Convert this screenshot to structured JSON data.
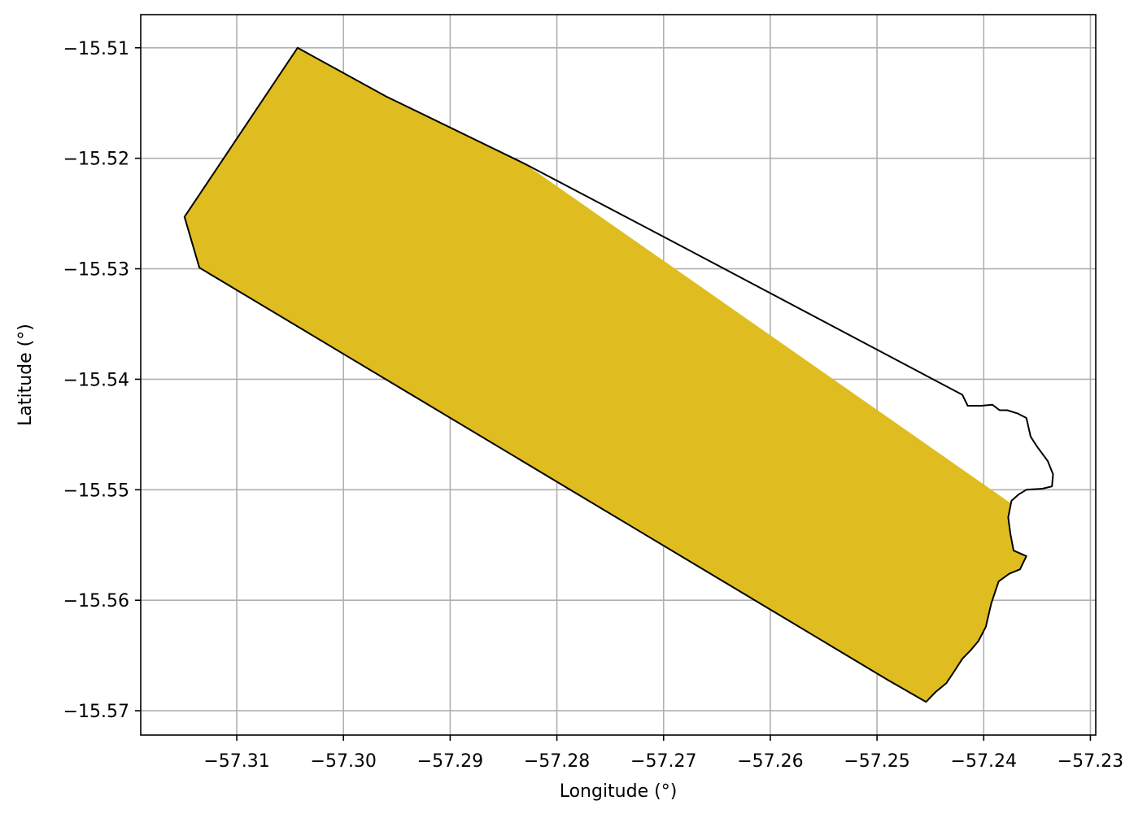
{
  "chart_data": {
    "type": "map",
    "xlabel": "Longitude (°)",
    "ylabel": "Latitude (°)",
    "xlim": [
      -57.319,
      -57.2295
    ],
    "ylim": [
      -15.5722,
      -15.507
    ],
    "grid": true,
    "x_ticks": [
      {
        "value": -57.31,
        "label": "−57.31"
      },
      {
        "value": -57.3,
        "label": "−57.30"
      },
      {
        "value": -57.29,
        "label": "−57.29"
      },
      {
        "value": -57.28,
        "label": "−57.28"
      },
      {
        "value": -57.27,
        "label": "−57.27"
      },
      {
        "value": -57.26,
        "label": "−57.26"
      },
      {
        "value": -57.25,
        "label": "−57.25"
      },
      {
        "value": -57.24,
        "label": "−57.24"
      },
      {
        "value": -57.23,
        "label": "−57.23"
      }
    ],
    "y_ticks": [
      {
        "value": -15.51,
        "label": "−15.51"
      },
      {
        "value": -15.52,
        "label": "−15.52"
      },
      {
        "value": -15.53,
        "label": "−15.53"
      },
      {
        "value": -15.54,
        "label": "−15.54"
      },
      {
        "value": -15.55,
        "label": "−15.55"
      },
      {
        "value": -15.56,
        "label": "−15.56"
      },
      {
        "value": -15.57,
        "label": "−15.57"
      }
    ],
    "colors": {
      "fill": "#dfbd20",
      "outline": "#000000",
      "grid": "#b0b0b0"
    },
    "outline_polygon": [
      [
        -57.3043,
        -15.51
      ],
      [
        -57.296,
        -15.5144
      ],
      [
        -57.283,
        -15.5205
      ],
      [
        -57.27,
        -15.5271
      ],
      [
        -57.242,
        -15.5414
      ],
      [
        -57.2415,
        -15.5424
      ],
      [
        -57.2402,
        -15.5424
      ],
      [
        -57.2392,
        -15.5423
      ],
      [
        -57.2385,
        -15.5428
      ],
      [
        -57.2378,
        -15.5428
      ],
      [
        -57.2368,
        -15.5431
      ],
      [
        -57.236,
        -15.5435
      ],
      [
        -57.2356,
        -15.5452
      ],
      [
        -57.235,
        -15.5461
      ],
      [
        -57.234,
        -15.5474
      ],
      [
        -57.2335,
        -15.5486
      ],
      [
        -57.2336,
        -15.5497
      ],
      [
        -57.2345,
        -15.5499
      ],
      [
        -57.236,
        -15.55
      ],
      [
        -57.2367,
        -15.5504
      ],
      [
        -57.2374,
        -15.551
      ],
      [
        -57.2377,
        -15.5525
      ],
      [
        -57.2375,
        -15.554
      ],
      [
        -57.2372,
        -15.5555
      ],
      [
        -57.236,
        -15.556
      ],
      [
        -57.2366,
        -15.5572
      ],
      [
        -57.2376,
        -15.5576
      ],
      [
        -57.2386,
        -15.5583
      ],
      [
        -57.2393,
        -15.5603
      ],
      [
        -57.2398,
        -15.5624
      ],
      [
        -57.2405,
        -15.5637
      ],
      [
        -57.2412,
        -15.5645
      ],
      [
        -57.242,
        -15.5653
      ],
      [
        -57.2428,
        -15.5665
      ],
      [
        -57.2435,
        -15.5675
      ],
      [
        -57.2445,
        -15.5683
      ],
      [
        -57.2454,
        -15.5692
      ],
      [
        -57.249,
        -15.5672
      ],
      [
        -57.3135,
        -15.5299
      ],
      [
        -57.3149,
        -15.5253
      ]
    ],
    "filled_polygon": [
      [
        -57.3043,
        -15.51
      ],
      [
        -57.296,
        -15.5144
      ],
      [
        -57.283,
        -15.5205
      ],
      [
        -57.2375,
        -15.5512
      ],
      [
        -57.2377,
        -15.5525
      ],
      [
        -57.2375,
        -15.554
      ],
      [
        -57.2372,
        -15.5555
      ],
      [
        -57.236,
        -15.556
      ],
      [
        -57.2366,
        -15.5572
      ],
      [
        -57.2376,
        -15.5576
      ],
      [
        -57.2386,
        -15.5583
      ],
      [
        -57.2393,
        -15.5603
      ],
      [
        -57.2398,
        -15.5624
      ],
      [
        -57.2405,
        -15.5637
      ],
      [
        -57.2412,
        -15.5645
      ],
      [
        -57.242,
        -15.5653
      ],
      [
        -57.2428,
        -15.5665
      ],
      [
        -57.2435,
        -15.5675
      ],
      [
        -57.2445,
        -15.5683
      ],
      [
        -57.2454,
        -15.5692
      ],
      [
        -57.249,
        -15.5672
      ],
      [
        -57.3135,
        -15.5299
      ],
      [
        -57.3149,
        -15.5253
      ]
    ]
  }
}
